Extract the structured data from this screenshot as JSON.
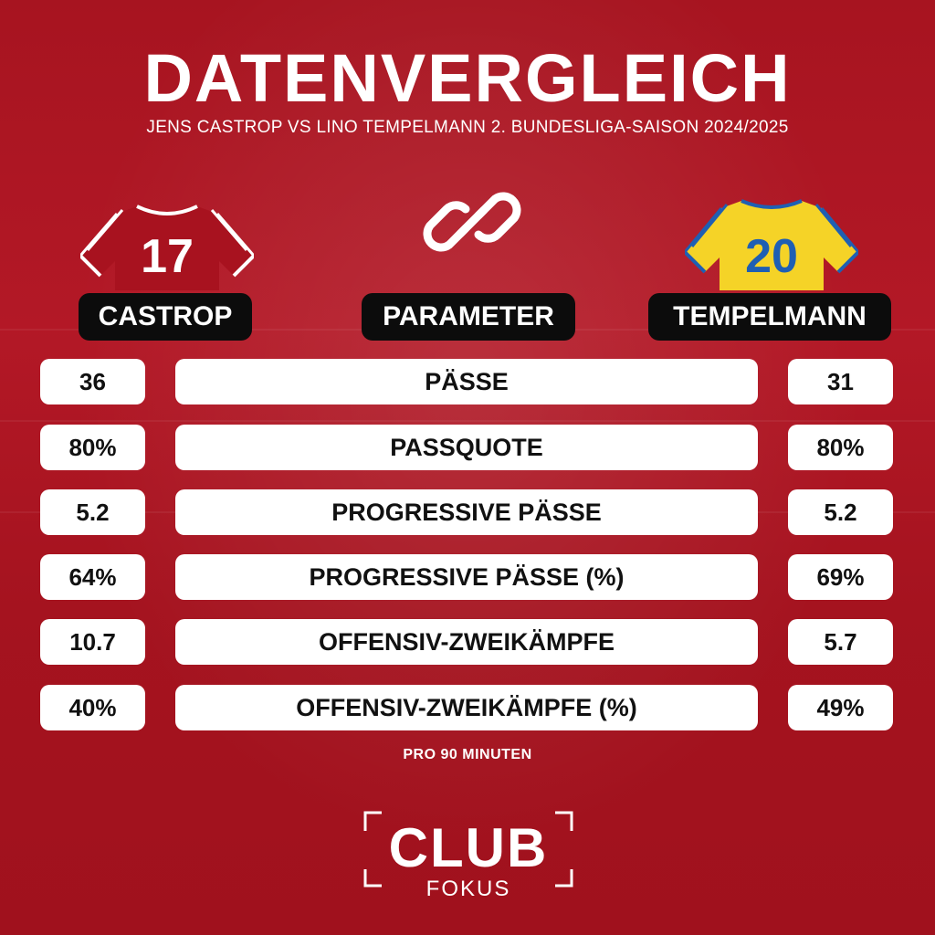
{
  "header": {
    "title": "DATENVERGLEICH",
    "subtitle": "JENS CASTROP VS LINO TEMPELMANN 2. BUNDESLIGA-SAISON 2024/2025"
  },
  "players": {
    "left": {
      "name": "CASTROP",
      "number": "17",
      "jersey_color": "#a8121f"
    },
    "center_label": "PARAMETER",
    "right": {
      "name": "TEMPELMANN",
      "number": "20",
      "jersey_color": "#f5d327",
      "number_color": "#1f5fb3"
    }
  },
  "rows": [
    {
      "left": "36",
      "param": "PÄSSE",
      "right": "31"
    },
    {
      "left": "80%",
      "param": "PASSQUOTE",
      "right": "80%"
    },
    {
      "left": "5.2",
      "param": "PROGRESSIVE PÄSSE",
      "right": "5.2"
    },
    {
      "left": "64%",
      "param": "PROGRESSIVE PÄSSE (%)",
      "right": "69%"
    },
    {
      "left": "10.7",
      "param": "OFFENSIV-ZWEIKÄMPFE",
      "right": "5.7"
    },
    {
      "left": "40%",
      "param": "OFFENSIV-ZWEIKÄMPFE (%)",
      "right": "49%"
    }
  ],
  "note": "PRO 90 MINUTEN",
  "logo": {
    "main": "CLUB",
    "sub": "FOKUS"
  },
  "icons": {
    "center": "link-icon",
    "left": "jersey-icon",
    "right": "jersey-icon"
  },
  "colors": {
    "background": "#a8121f",
    "pill": "#0c0c0c",
    "box": "#ffffff"
  }
}
